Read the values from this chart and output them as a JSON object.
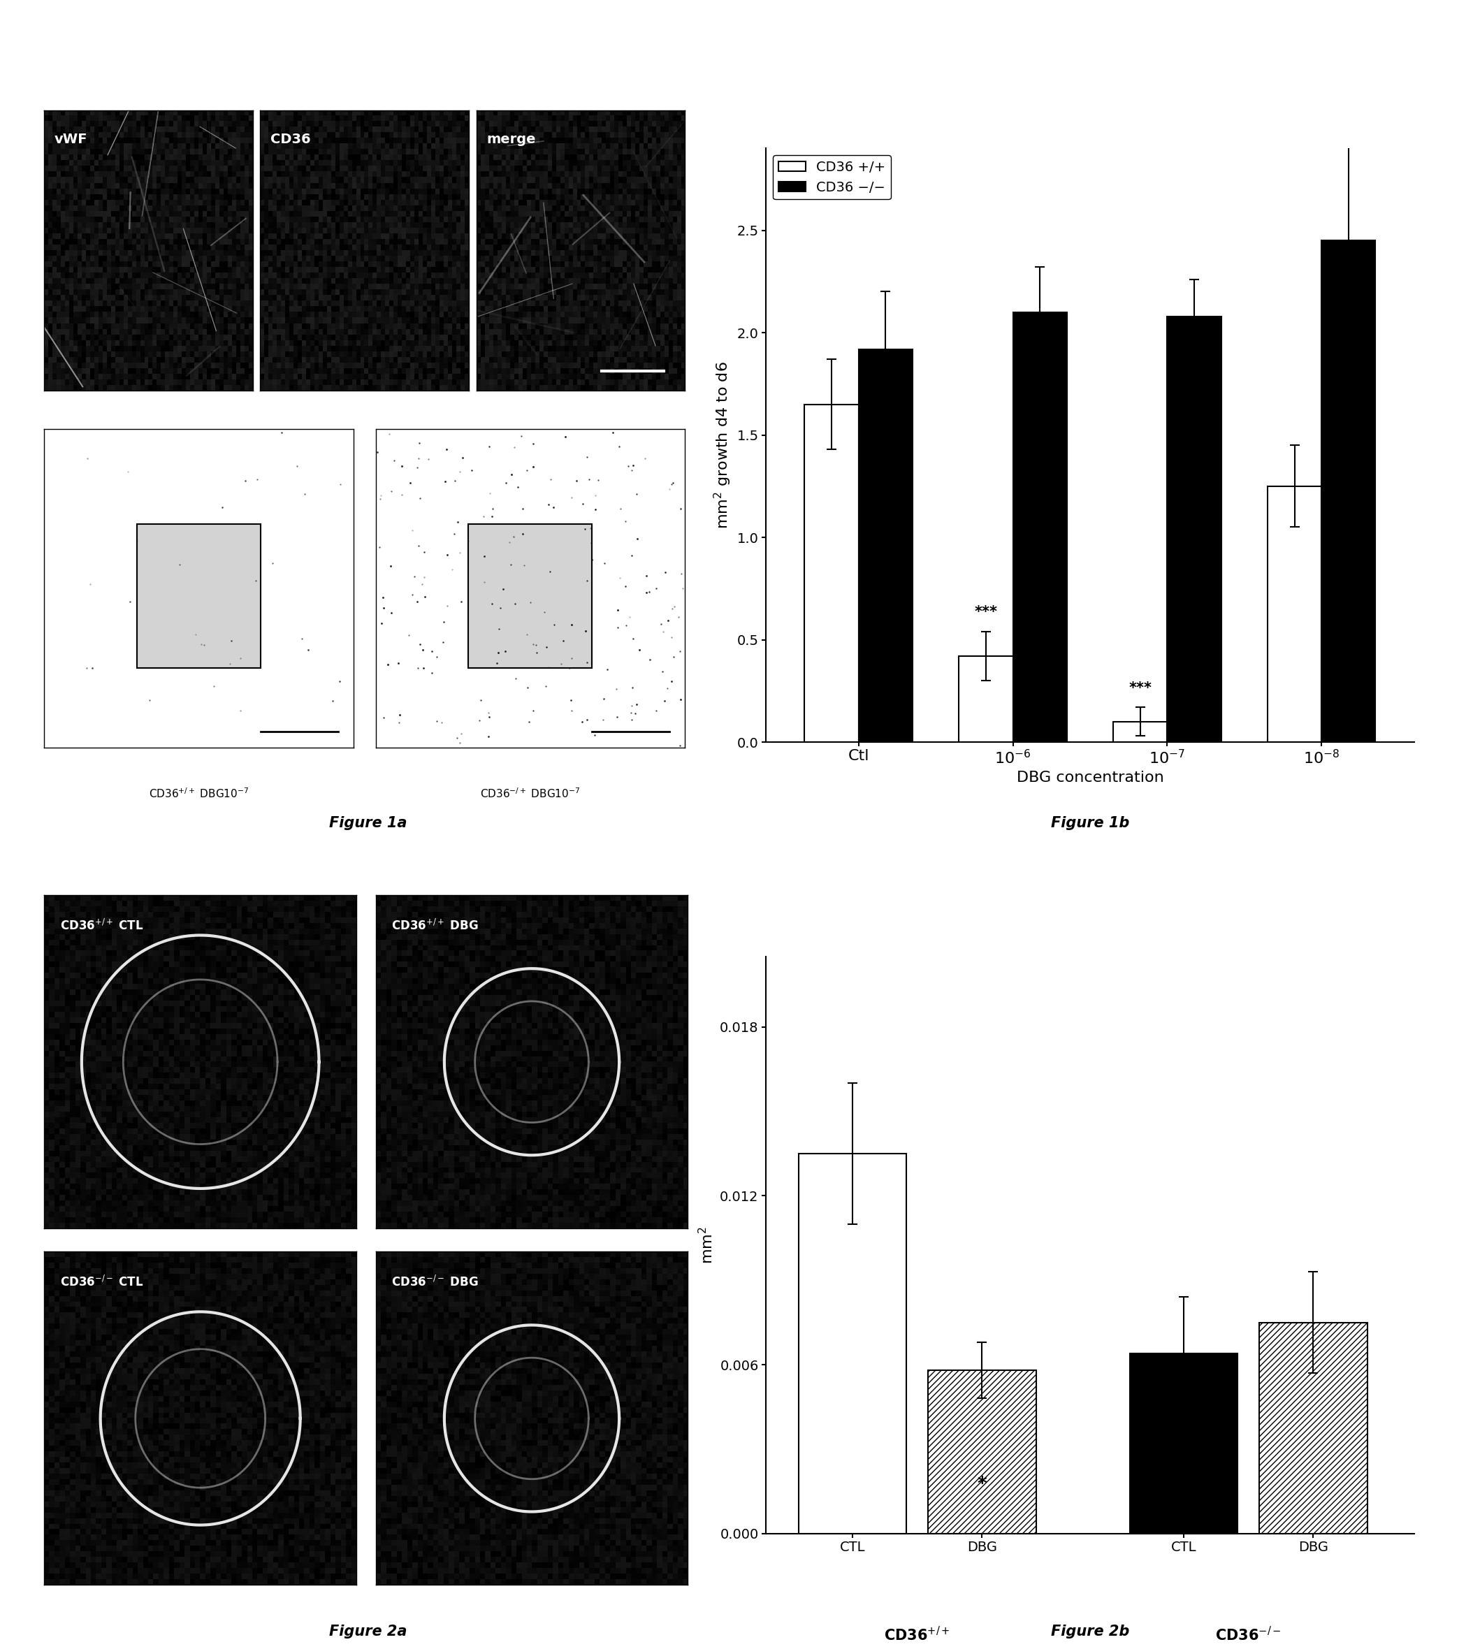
{
  "fig1b": {
    "groups": [
      "Ctl",
      "10$^{-6}$",
      "10$^{-7}$",
      "10$^{-8}$"
    ],
    "white_values": [
      1.65,
      0.42,
      0.1,
      1.25
    ],
    "white_errors": [
      0.22,
      0.12,
      0.07,
      0.2
    ],
    "black_values": [
      1.92,
      2.1,
      2.08,
      2.45
    ],
    "black_errors": [
      0.28,
      0.22,
      0.18,
      0.55
    ],
    "ylabel": "mm$^2$ growth d4 to d6",
    "xlabel": "DBG concentration",
    "ylim": [
      0,
      2.9
    ],
    "yticks": [
      0.0,
      0.5,
      1.0,
      1.5,
      2.0,
      2.5
    ],
    "ytick_labels": [
      "0.0",
      "0.5",
      "1.0",
      "1.5",
      "2.0",
      "2.5"
    ],
    "legend_labels": [
      "CD36 +/+",
      "CD36 −/−"
    ],
    "sig_white": [
      false,
      true,
      true,
      false
    ],
    "sig_labels": [
      "",
      "***",
      "***",
      ""
    ],
    "figure_label": "Figure 1b"
  },
  "fig2b": {
    "bar_labels": [
      "CTL",
      "DBG",
      "CTL",
      "DBG"
    ],
    "bar_values": [
      0.0135,
      0.0058,
      0.0064,
      0.0075
    ],
    "bar_errors": [
      0.0025,
      0.001,
      0.002,
      0.0018
    ],
    "group_labels": [
      "CD36$^{+/+}$",
      "CD36$^{-/-}$"
    ],
    "ylabel": "mm$^2$",
    "ylim": [
      0,
      0.0205
    ],
    "yticks": [
      0.0,
      0.006,
      0.012,
      0.018
    ],
    "ytick_labels": [
      "0.000",
      "0.006",
      "0.012",
      "0.018"
    ],
    "sig_bar_idx": 1,
    "sig_label": "*",
    "figure_label": "Figure 2b"
  },
  "fig1a": {
    "panel_labels": [
      "vWF",
      "CD36",
      "merge"
    ],
    "bottom_labels": [
      "CD36$^{+/+}$ DBG10$^{-7}$",
      "CD36$^{-/+}$ DBG10$^{-7}$"
    ],
    "figure_label": "Figure 1a"
  },
  "fig2a": {
    "panel_labels": [
      "CD36$^{+/+}$ CTL",
      "CD36$^{+/+}$ DBG",
      "CD36$^{-/-}$ CTL",
      "CD36$^{-/-}$ DBG"
    ],
    "figure_label": "Figure 2a"
  },
  "background_color": "#ffffff",
  "bar_width": 0.35,
  "fontsize_axis_label": 16,
  "fontsize_tick": 14,
  "fontsize_legend": 14,
  "fontsize_fig_label": 15,
  "fontsize_sig": 15,
  "fontsize_panel_label": 14
}
